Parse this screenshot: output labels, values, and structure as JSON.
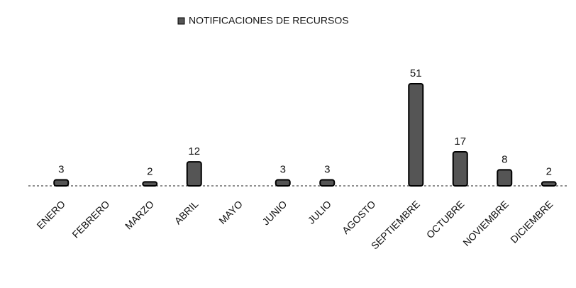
{
  "chart_data": {
    "type": "bar",
    "categories": [
      "ENERO",
      "FEBRERO",
      "MARZO",
      "ABRIL",
      "MAYO",
      "JUNIO",
      "JULIO",
      "AGOSTO",
      "SEPTIEMBRE",
      "OCTUBRE",
      "NOVIEMBRE",
      "DICIEMBRE"
    ],
    "series": [
      {
        "name": "NOTIFICACIONES DE RECURSOS",
        "color": "#555555",
        "values": [
          3,
          null,
          2,
          12,
          null,
          3,
          3,
          null,
          51,
          17,
          8,
          2
        ]
      }
    ],
    "legend": "top",
    "grid": false
  }
}
